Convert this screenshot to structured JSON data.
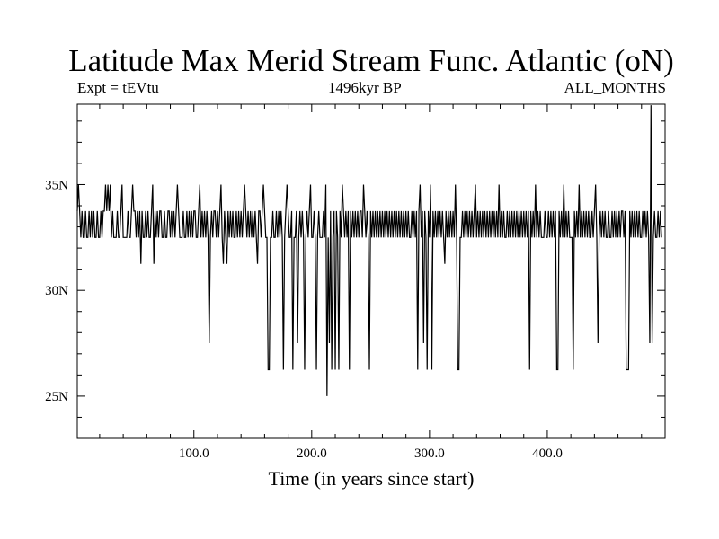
{
  "chart_data": {
    "type": "line",
    "title": "Latitude Max Merid Stream Func. Atlantic (oN)",
    "subtitle_left": "Expt = tEVtu",
    "subtitle_center": "1496kyr BP",
    "subtitle_right": "ALL_MONTHS",
    "xlabel": "Time (in years since start)",
    "ylabel": "",
    "xlim": [
      1,
      500
    ],
    "ylim": [
      23,
      38.8
    ],
    "x_ticks": [
      100,
      200,
      300,
      400
    ],
    "x_tick_labels": [
      "100.0",
      "200.0",
      "300.0",
      "400.0"
    ],
    "y_ticks": [
      25,
      30,
      35
    ],
    "y_tick_labels": [
      "25N",
      "30N",
      "35N"
    ],
    "grid": false,
    "series": [
      {
        "name": "",
        "color": "#000000",
        "x_start": 1,
        "x_step": 1,
        "values": [
          33.75,
          35,
          33.75,
          32.5,
          33.75,
          32.5,
          32.5,
          33.75,
          32.5,
          32.5,
          33.75,
          32.5,
          33.75,
          32.5,
          33.75,
          32.5,
          32.5,
          33.75,
          32.5,
          32.5,
          33.75,
          32.5,
          33.75,
          33.75,
          35,
          33.75,
          35,
          33.75,
          35,
          32.5,
          33.75,
          32.5,
          32.5,
          32.5,
          33.75,
          32.5,
          32.5,
          33.75,
          35,
          32.5,
          32.5,
          32.5,
          32.5,
          33.75,
          32.5,
          32.5,
          33.75,
          35,
          33.75,
          33.75,
          32.5,
          33.75,
          32.5,
          33.75,
          31.25,
          33.75,
          32.5,
          32.5,
          33.75,
          32.5,
          33.75,
          32.5,
          32.5,
          33.75,
          35,
          31.25,
          33.75,
          32.5,
          33.75,
          32.5,
          33.75,
          33.75,
          32.5,
          32.5,
          33.75,
          32.5,
          32.5,
          33.75,
          33.75,
          32.5,
          33.75,
          32.5,
          33.75,
          32.5,
          33.75,
          35,
          33.75,
          32.5,
          32.5,
          32.5,
          33.75,
          32.5,
          32.5,
          33.75,
          32.5,
          33.75,
          32.5,
          33.75,
          32.5,
          33.75,
          33.75,
          32.5,
          32.5,
          33.75,
          35,
          32.5,
          33.75,
          32.5,
          33.75,
          32.5,
          33.75,
          32.5,
          27.5,
          32.5,
          33.75,
          32.5,
          33.75,
          33.75,
          32.5,
          33.75,
          32.5,
          33.75,
          35,
          32.5,
          31.25,
          33.75,
          32.5,
          31.25,
          33.75,
          32.5,
          33.75,
          32.5,
          33.75,
          32.5,
          32.5,
          33.75,
          32.5,
          33.75,
          32.5,
          33.75,
          32.5,
          33.75,
          35,
          33.75,
          32.5,
          33.75,
          32.5,
          33.75,
          32.5,
          33.75,
          32.5,
          33.75,
          32.5,
          31.25,
          33.75,
          33.75,
          32.5,
          33.75,
          35,
          33.75,
          32.5,
          32.5,
          26.25,
          26.25,
          32.5,
          32.5,
          33.75,
          32.5,
          32.5,
          33.75,
          32.5,
          33.75,
          32.5,
          33.75,
          32.5,
          26.25,
          32.5,
          33.75,
          35,
          33.75,
          32.5,
          32.5,
          33.75,
          26.25,
          32.5,
          32.5,
          33.75,
          27.5,
          32.5,
          33.75,
          32.5,
          33.75,
          32.5,
          26.25,
          32.5,
          33.75,
          32.5,
          33.75,
          35,
          32.5,
          32.5,
          33.75,
          32.5,
          26.25,
          32.5,
          33.75,
          32.5,
          32.5,
          32.5,
          33.75,
          32.5,
          35,
          25,
          32.5,
          27.5,
          33.75,
          26.25,
          32.5,
          33.75,
          26.25,
          33.75,
          32.5,
          26.25,
          33.75,
          32.5,
          35,
          33.75,
          32.5,
          33.75,
          32.5,
          33.75,
          26.25,
          33.75,
          32.5,
          33.75,
          32.5,
          33.75,
          32.5,
          33.75,
          32.5,
          33.75,
          33.75,
          32.5,
          35,
          33.75,
          32.5,
          33.75,
          32.5,
          26.25,
          33.75,
          32.5,
          33.75,
          32.5,
          33.75,
          32.5,
          33.75,
          32.5,
          33.75,
          32.5,
          33.75,
          32.5,
          33.75,
          32.5,
          33.75,
          32.5,
          33.75,
          32.5,
          33.75,
          32.5,
          33.75,
          32.5,
          33.75,
          32.5,
          33.75,
          32.5,
          33.75,
          32.5,
          33.75,
          32.5,
          33.75,
          32.5,
          33.75,
          32.5,
          32.5,
          33.75,
          32.5,
          33.75,
          32.5,
          33.75,
          26.25,
          33.75,
          35,
          32.5,
          33.75,
          27.5,
          33.75,
          32.5,
          26.25,
          33.75,
          32.5,
          35,
          26.25,
          33.75,
          32.5,
          33.75,
          32.5,
          33.75,
          32.5,
          33.75,
          32.5,
          33.75,
          32.5,
          31.25,
          33.75,
          32.5,
          33.75,
          32.5,
          33.75,
          32.5,
          33.75,
          32.5,
          35,
          32.5,
          26.25,
          26.25,
          32.5,
          32.5,
          33.75,
          32.5,
          33.75,
          32.5,
          33.75,
          32.5,
          33.75,
          32.5,
          33.75,
          32.5,
          33.75,
          35,
          32.5,
          33.75,
          32.5,
          33.75,
          32.5,
          33.75,
          32.5,
          33.75,
          32.5,
          33.75,
          32.5,
          33.75,
          32.5,
          33.75,
          32.5,
          33.75,
          32.5,
          33.75,
          32.5,
          35,
          32.5,
          33.75,
          32.5,
          33.75,
          32.5,
          32.5,
          33.75,
          32.5,
          33.75,
          32.5,
          33.75,
          32.5,
          33.75,
          32.5,
          33.75,
          32.5,
          33.75,
          32.5,
          33.75,
          32.5,
          33.75,
          32.5,
          33.75,
          32.5,
          33.75,
          26.25,
          33.75,
          32.5,
          33.75,
          32.5,
          35,
          32.5,
          33.75,
          32.5,
          33.75,
          32.5,
          32.5,
          32.5,
          33.75,
          32.5,
          32.5,
          33.75,
          32.5,
          33.75,
          32.5,
          33.75,
          32.5,
          33.75,
          26.25,
          26.25,
          33.75,
          32.5,
          33.75,
          32.5,
          35,
          32.5,
          33.75,
          32.5,
          33.75,
          32.5,
          32.5,
          32.5,
          26.25,
          33.75,
          32.5,
          33.75,
          32.5,
          35,
          32.5,
          33.75,
          32.5,
          33.75,
          32.5,
          33.75,
          32.5,
          33.75,
          32.5,
          32.5,
          33.75,
          32.5,
          33.75,
          35,
          32.5,
          27.5,
          32.5,
          33.75,
          32.5,
          33.75,
          32.5,
          33.75,
          32.5,
          32.5,
          33.75,
          32.5,
          32.5,
          33.75,
          32.5,
          33.75,
          32.5,
          33.75,
          32.5,
          33.75,
          32.5,
          33.75,
          33.75,
          32.5,
          33.75,
          26.25,
          26.25,
          26.25,
          33.75,
          32.5,
          33.75,
          32.5,
          33.75,
          32.5,
          33.75,
          32.5,
          33.75,
          32.5,
          32.5,
          33.75,
          32.5,
          33.75,
          32.5,
          33.75,
          32.5,
          27.5,
          38.75,
          27.5,
          32.5,
          33.75,
          32.5,
          32.5,
          33.75,
          32.5,
          33.75,
          32.5
        ]
      }
    ]
  }
}
